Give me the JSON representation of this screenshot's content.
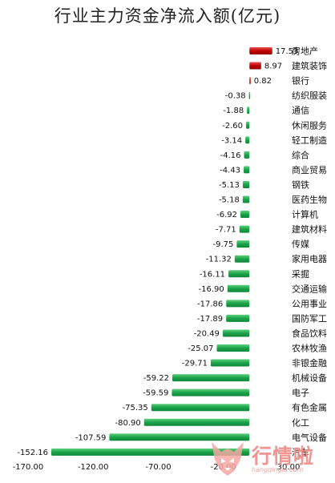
{
  "chart_data": {
    "type": "bar",
    "orientation": "horizontal",
    "title": "行业主力资金净流入额(亿元)",
    "categories": [
      "房地产",
      "建筑装饰",
      "银行",
      "纺织服装",
      "通信",
      "休闲服务",
      "轻工制造",
      "综合",
      "商业贸易",
      "钢铁",
      "医药生物",
      "计算机",
      "建筑材料",
      "传媒",
      "家用电器",
      "采掘",
      "交通运输",
      "公用事业",
      "国防军工",
      "食品饮料",
      "农林牧渔",
      "非银金融",
      "机械设备",
      "电子",
      "有色金属",
      "化工",
      "电气设备",
      "汽车"
    ],
    "values": [
      17.53,
      8.97,
      0.82,
      -0.38,
      -1.88,
      -2.6,
      -3.14,
      -4.16,
      -4.43,
      -5.13,
      -5.18,
      -6.92,
      -7.71,
      -9.75,
      -11.32,
      -16.11,
      -16.9,
      -17.86,
      -17.89,
      -20.49,
      -25.07,
      -29.71,
      -59.22,
      -59.59,
      -75.35,
      -80.9,
      -107.59,
      -152.16
    ],
    "value_labels": [
      "17.53",
      "8.97",
      "0.82",
      "-0.38",
      "-1.88",
      "-2.60",
      "-3.14",
      "-4.16",
      "-4.43",
      "-5.13",
      "-5.18",
      "-6.92",
      "-7.71",
      "-9.75",
      "-11.32",
      "-16.11",
      "-16.90",
      "-17.86",
      "-17.89",
      "-20.49",
      "-25.07",
      "-29.71",
      "-59.22",
      "-59.59",
      "-75.35",
      "-80.90",
      "-107.59",
      "-152.16"
    ],
    "xlim": [
      -170,
      30
    ],
    "xticks": [
      -170,
      -120,
      -70,
      -20,
      30
    ],
    "xtick_labels": [
      "-170.00",
      "-120.00",
      "-70.00",
      "-20.00",
      "30.00"
    ],
    "grid": false,
    "legend": "none",
    "colors": {
      "positive": "#c00000",
      "negative": "#1aa34a"
    }
  },
  "watermark": {
    "text": "行情啦",
    "url": "hangqingla.com"
  }
}
